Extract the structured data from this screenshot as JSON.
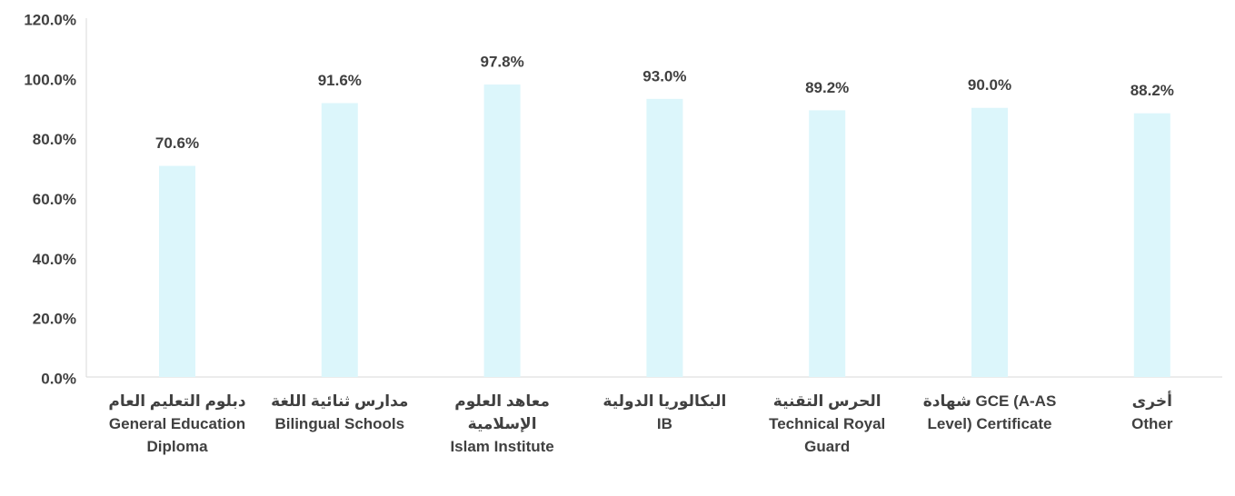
{
  "chart_data": {
    "type": "bar",
    "categories": [
      "دبلوم التعليم العام\nGeneral Education Diploma",
      "مدارس ثنائية اللغة\nBilingual Schools",
      "معاهد العلوم الإسلامية\nIslam Institute",
      "البكالوريا الدولية\nIB",
      "الحرس التقنية\nTechnical Royal Guard",
      "شهادة GCE (A-AS Level) Certificate",
      "أخرى\nOther"
    ],
    "values": [
      70.6,
      91.6,
      97.8,
      93.0,
      89.2,
      90.0,
      88.2
    ],
    "value_labels": [
      "70.6%",
      "91.6%",
      "97.8%",
      "93.0%",
      "89.2%",
      "90.0%",
      "88.2%"
    ],
    "color": "#dcf6fb",
    "ylim": [
      0,
      120
    ],
    "yticks": [
      {
        "value": 0,
        "label": "0.0%"
      },
      {
        "value": 20,
        "label": "20.0%"
      },
      {
        "value": 40,
        "label": "40.0%"
      },
      {
        "value": 60,
        "label": "60.0%"
      },
      {
        "value": 80,
        "label": "80.0%"
      },
      {
        "value": 100,
        "label": "100.0%"
      },
      {
        "value": 120,
        "label": "120.0%"
      }
    ],
    "grid": false
  }
}
